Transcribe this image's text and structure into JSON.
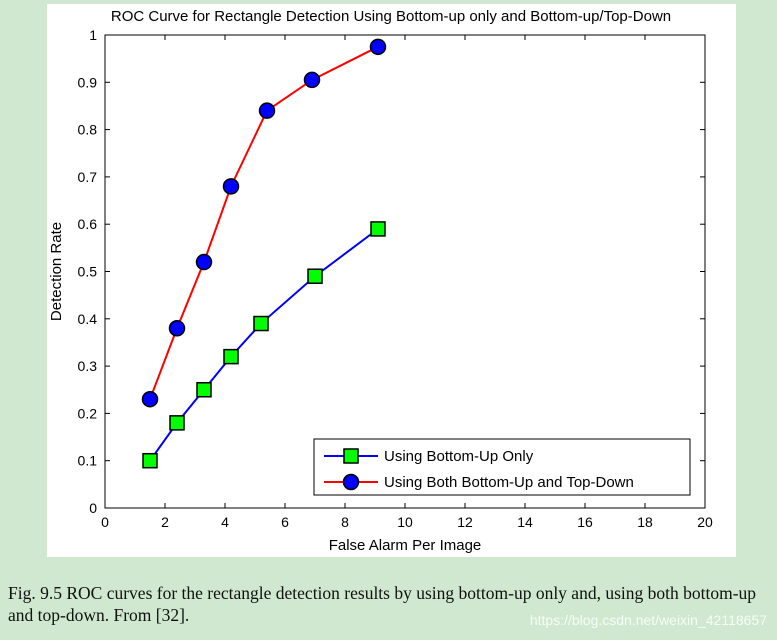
{
  "chart_data": {
    "type": "line",
    "title": "ROC Curve for Rectangle Detection Using Bottom-up only and Bottom-up/Top-Down",
    "xlabel": "False Alarm Per Image",
    "ylabel": "Detection Rate",
    "xlim": [
      0,
      20
    ],
    "ylim": [
      0,
      1
    ],
    "xticks": [
      0,
      2,
      4,
      6,
      8,
      10,
      12,
      14,
      16,
      18,
      20
    ],
    "yticks": [
      0,
      0.1,
      0.2,
      0.3,
      0.4,
      0.5,
      0.6,
      0.7,
      0.8,
      0.9,
      1
    ],
    "xtick_labels": [
      "0",
      "2",
      "4",
      "6",
      "8",
      "10",
      "12",
      "14",
      "16",
      "18",
      "20"
    ],
    "ytick_labels": [
      "0",
      "0.1",
      "0.2",
      "0.3",
      "0.4",
      "0.5",
      "0.6",
      "0.7",
      "0.8",
      "0.9",
      "1"
    ],
    "grid": false,
    "legend_position": "bottom-right",
    "series": [
      {
        "name": "Using Bottom-Up Only",
        "color": "#0000ff",
        "marker": "square",
        "marker_fill": "#00ff00",
        "x": [
          1.5,
          2.4,
          3.3,
          4.2,
          5.2,
          7.0,
          9.1
        ],
        "y": [
          0.1,
          0.18,
          0.25,
          0.32,
          0.39,
          0.49,
          0.59
        ]
      },
      {
        "name": "Using Both Bottom-Up and Top-Down",
        "color": "#ff0000",
        "marker": "circle",
        "marker_fill": "#0000ff",
        "x": [
          1.5,
          2.4,
          3.3,
          4.2,
          5.4,
          6.9,
          9.1
        ],
        "y": [
          0.23,
          0.38,
          0.52,
          0.68,
          0.84,
          0.905,
          0.975
        ]
      }
    ]
  },
  "caption": {
    "text": "Fig. 9.5  ROC curves for the rectangle detection results by using bottom-up only and, using both bottom-up and top-down. From [32]."
  },
  "watermark": "https://blog.csdn.net/weixin_42118657"
}
